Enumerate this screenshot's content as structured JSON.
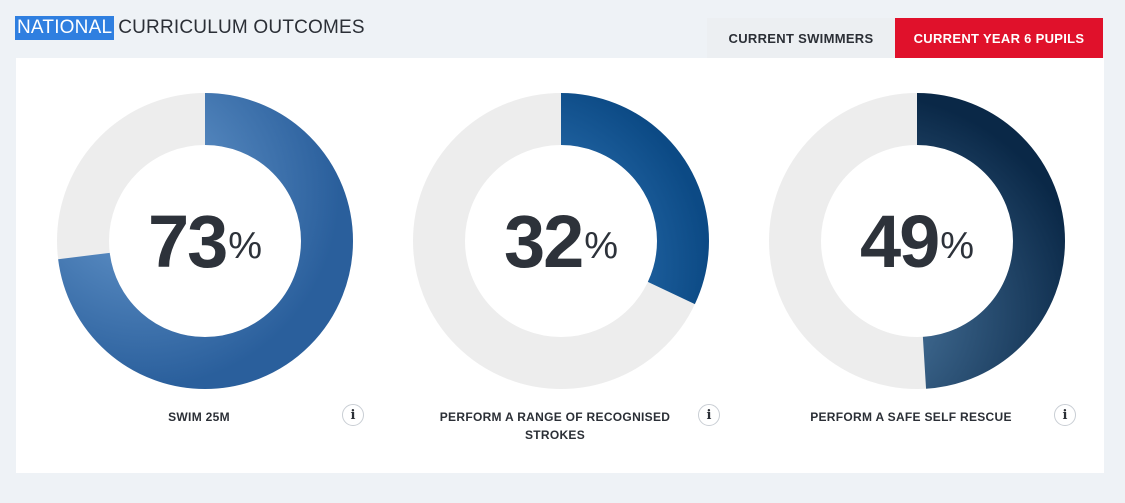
{
  "header": {
    "highlight": "NATIONAL",
    "rest": "CURRICULUM OUTCOMES"
  },
  "tabs": [
    {
      "label": "CURRENT SWIMMERS",
      "active": false
    },
    {
      "label": "CURRENT YEAR 6 PUPILS",
      "active": true
    }
  ],
  "colors": {
    "accent_red": "#e0112b",
    "track": "#ededed",
    "highlight_blue": "#2f7fe0"
  },
  "outcomes": [
    {
      "value": 73,
      "unit": "%",
      "label": "SWIM 25M",
      "info_icon": "info-icon",
      "fill_light": "#6a9bcf",
      "fill_dark": "#2a5f9c"
    },
    {
      "value": 32,
      "unit": "%",
      "label": "PERFORM A RANGE OF RECOGNISED STROKES",
      "info_icon": "info-icon",
      "fill_light": "#3e86c9",
      "fill_dark": "#0c4a85"
    },
    {
      "value": 49,
      "unit": "%",
      "label": "PERFORM A SAFE SELF RESCUE",
      "info_icon": "info-icon",
      "fill_light": "#4d7aa3",
      "fill_dark": "#0a2847"
    }
  ]
}
